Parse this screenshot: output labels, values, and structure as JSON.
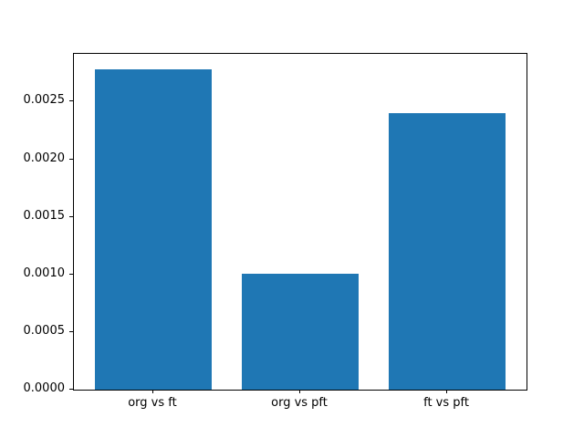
{
  "chart_data": {
    "type": "bar",
    "title": "",
    "xlabel": "",
    "ylabel": "",
    "categories": [
      "org vs ft",
      "org vs pft",
      "ft vs pft"
    ],
    "values": [
      0.00278,
      0.00101,
      0.0024
    ],
    "yticks": [
      0.0,
      0.0005,
      0.001,
      0.0015,
      0.002,
      0.0025
    ],
    "ytick_decimals": 4,
    "ytick_labels": [
      "0.0000",
      "0.0005",
      "0.0010",
      "0.0015",
      "0.0020",
      "0.0025"
    ],
    "ylim": [
      0,
      0.002916
    ],
    "xlim": [
      -0.54,
      2.54
    ],
    "bar_width": 0.8,
    "bar_color": "#1f77b4",
    "spine_color": "#000000",
    "background_color": "#ffffff",
    "grid": "off",
    "legend": "none"
  }
}
